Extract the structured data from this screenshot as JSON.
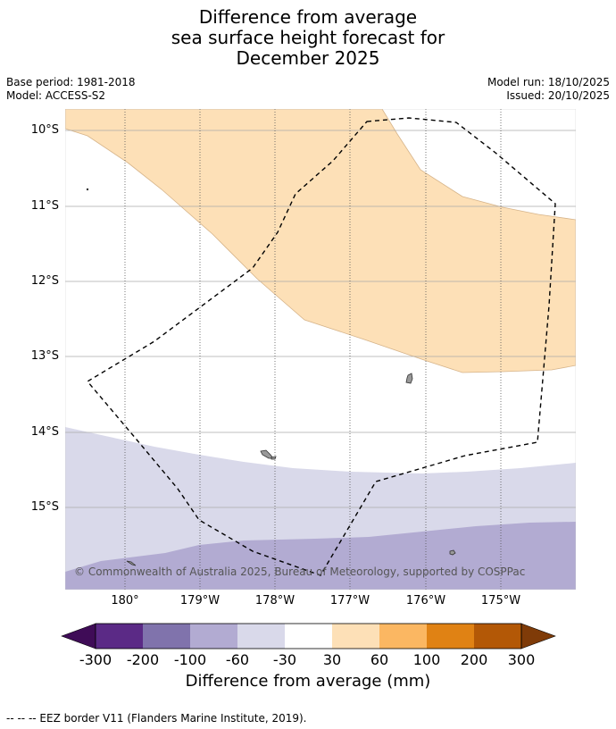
{
  "title": {
    "line1": "Difference from average",
    "line2": "sea surface height forecast for",
    "line3": "December 2025"
  },
  "meta": {
    "base_period": "Base period: 1981-2018",
    "model": "Model: ACCESS-S2",
    "model_run": "Model run: 18/10/2025",
    "issued": "Issued: 20/10/2025"
  },
  "map": {
    "lat_labels": [
      "10°S",
      "11°S",
      "12°S",
      "13°S",
      "14°S",
      "15°S"
    ],
    "lon_labels": [
      "180°",
      "179°W",
      "178°W",
      "177°W",
      "176°W",
      "175°W"
    ],
    "copyright": "© Commonwealth of Australia 2025, Bureau of Meteorology, supported by COSPPac",
    "colors": {
      "above_30_60": "#fde0b7",
      "below_30_60": "#d9d9ea",
      "below_60_100": "#b2abd2",
      "land": "#999999",
      "eez_border": "#000000",
      "grid": "#aaaaaa"
    }
  },
  "colorbar": {
    "ticks": [
      "-300",
      "-200",
      "-100",
      "-60",
      "-30",
      "30",
      "60",
      "100",
      "200",
      "300"
    ],
    "colors": [
      "#3f0c57",
      "#5b2a86",
      "#8073ac",
      "#b2abd2",
      "#d9d9ea",
      "#ffffff",
      "#fde0b7",
      "#fbb762",
      "#e08214",
      "#b35806",
      "#7f3b08"
    ],
    "title": "Difference from average (mm)"
  },
  "footer": "--  --  -- EEZ border V11 (Flanders Marine Institute, 2019)."
}
